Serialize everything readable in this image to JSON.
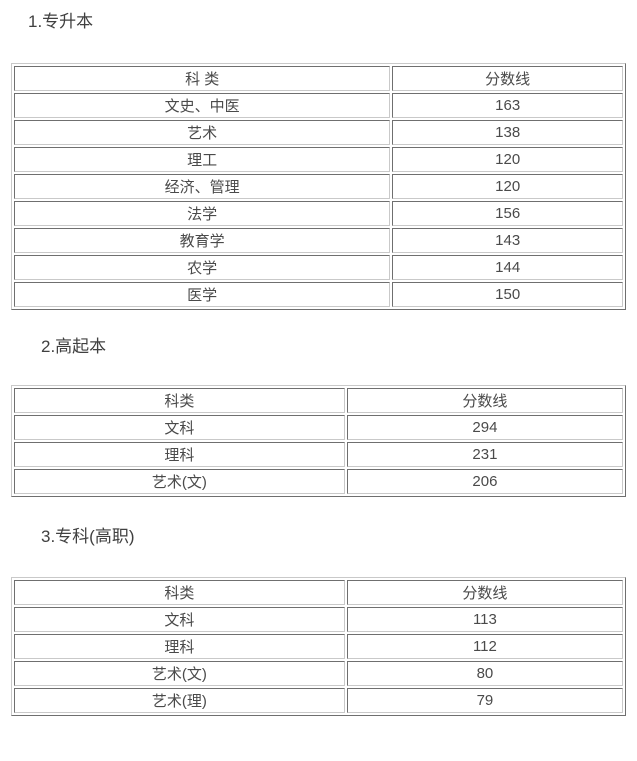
{
  "page": {
    "background_color": "#ffffff",
    "text_color": "#404040",
    "table_border_dark": "#6f6f6f",
    "table_border_light": "#c9c9c9"
  },
  "sections": [
    {
      "heading": "1.专升本",
      "table": {
        "headers": [
          "科 类",
          "分数线"
        ],
        "rows": [
          {
            "category": "文史、中医",
            "score": "163"
          },
          {
            "category": "艺术",
            "score": "138"
          },
          {
            "category": "理工",
            "score": "120"
          },
          {
            "category": "经济、管理",
            "score": "120"
          },
          {
            "category": "法学",
            "score": "156"
          },
          {
            "category": "教育学",
            "score": "143"
          },
          {
            "category": "农学",
            "score": "144"
          },
          {
            "category": "医学",
            "score": "150"
          }
        ]
      }
    },
    {
      "heading": "2.高起本",
      "table": {
        "headers": [
          "科类",
          "分数线"
        ],
        "rows": [
          {
            "category": "文科",
            "score": "294"
          },
          {
            "category": "理科",
            "score": "231"
          },
          {
            "category": "艺术(文)",
            "score": "206"
          }
        ]
      }
    },
    {
      "heading": "3.专科(高职)",
      "table": {
        "headers": [
          "科类",
          "分数线"
        ],
        "rows": [
          {
            "category": "文科",
            "score": "113"
          },
          {
            "category": "理科",
            "score": "112"
          },
          {
            "category": "艺术(文)",
            "score": "80"
          },
          {
            "category": "艺术(理)",
            "score": "79"
          }
        ]
      }
    }
  ]
}
